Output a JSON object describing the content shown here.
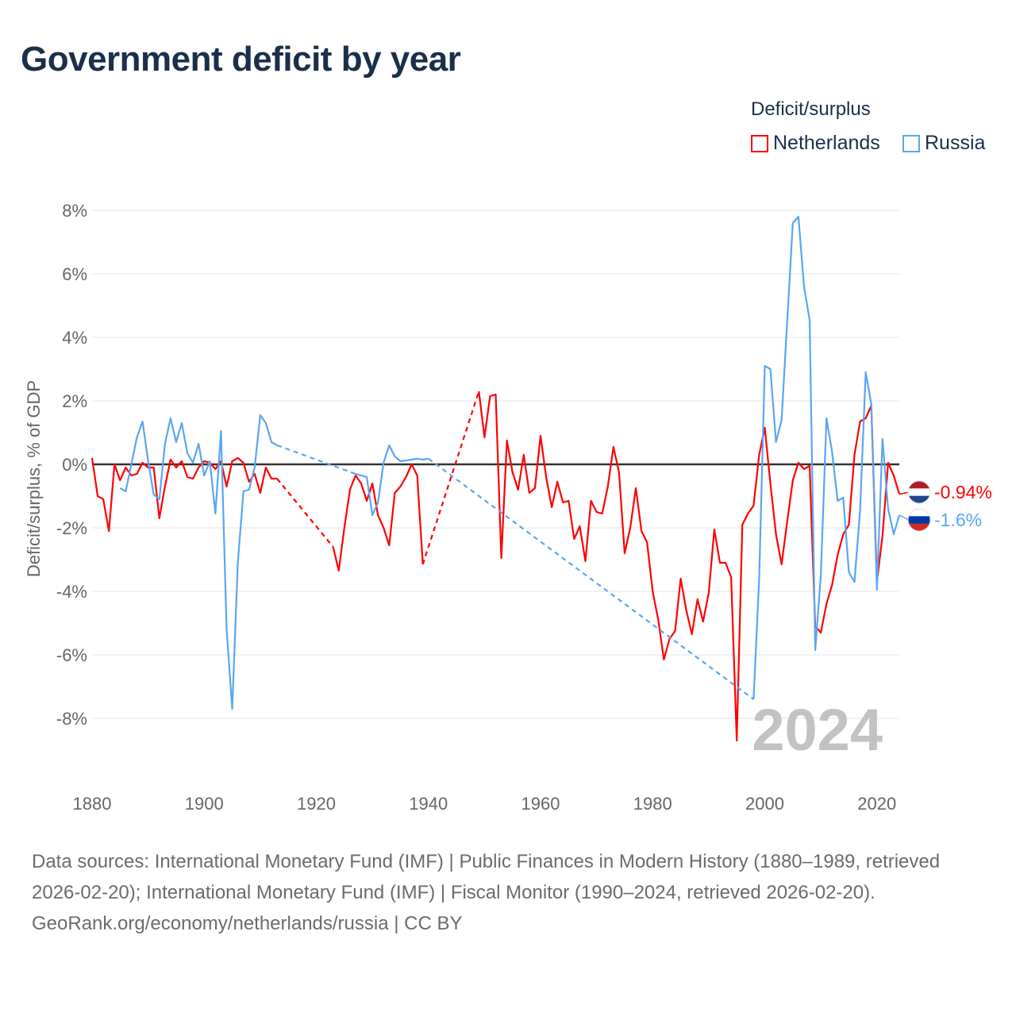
{
  "title": "Government deficit by year",
  "legend": {
    "title": "Deficit/surplus",
    "items": [
      {
        "name": "Netherlands",
        "color": "#ff0000"
      },
      {
        "name": "Russia",
        "color": "#5aa6f0"
      }
    ]
  },
  "chart_data": {
    "type": "line",
    "title": "Government deficit by year",
    "xlabel": "",
    "ylabel": "Deficit/surplus, % of GDP",
    "xlim": [
      1880,
      2024
    ],
    "ylim": [
      -10,
      8
    ],
    "x_ticks": [
      "1880",
      "1900",
      "1920",
      "1940",
      "1960",
      "1980",
      "2000",
      "2020"
    ],
    "y_ticks": [
      "8%",
      "6%",
      "4%",
      "2%",
      "0%",
      "-2%",
      "-4%",
      "-6%",
      "-8%"
    ],
    "grid": true,
    "legend_position": "top-right",
    "current_year_label": "2024",
    "series": [
      {
        "name": "Netherlands",
        "color": "#ff0000",
        "end_label": "-0.94%",
        "segments": [
          {
            "start": 1880,
            "values": [
              0.2,
              -1.0,
              -1.1,
              -2.1,
              0,
              -0.5,
              -0.1,
              -0.35,
              -0.3,
              0.05,
              -0.1,
              -0.1,
              -1.7,
              -0.7,
              0.15,
              -0.1,
              0.1,
              -0.4,
              -0.45,
              -0.1,
              0.1,
              0.05,
              -0.15,
              0.1,
              -0.7,
              0.1,
              0.2,
              0.05,
              -0.55,
              -0.3,
              -0.9,
              -0.1,
              -0.45,
              -0.45
            ]
          },
          {
            "start": 1923,
            "values": [
              -2.6,
              -3.35,
              -2.0,
              -0.8,
              -0.35,
              -0.6,
              -1.15,
              -0.6,
              -1.6,
              -2.0,
              -2.55,
              -0.9,
              -0.7,
              -0.4,
              0.0,
              -0.35,
              -3.15
            ]
          },
          {
            "start": 1949,
            "values": [
              2.3,
              0.85,
              2.15,
              2.2,
              -2.95,
              0.75,
              -0.25,
              -0.8,
              0.3,
              -0.9,
              -0.75,
              0.9,
              -0.4,
              -1.35,
              -0.55,
              -1.2,
              -1.15,
              -2.35,
              -1.95,
              -3.05,
              -1.15,
              -1.5,
              -1.55,
              -0.7,
              0.55,
              -0.25,
              -2.8,
              -2.0,
              -0.75,
              -2.1,
              -2.45,
              -4.0,
              -4.9,
              -6.15,
              -5.5,
              -5.25,
              -3.6,
              -4.6,
              -5.35,
              -4.25,
              -4.95,
              -4.05,
              -2.05,
              -3.1,
              -3.1,
              -3.55,
              -8.7,
              -1.9,
              -1.55,
              -1.3,
              0.3,
              1.15,
              -0.6,
              -2.2,
              -3.15,
              -1.8,
              -0.5,
              0.05,
              -0.15,
              -0.05,
              -5.1,
              -5.3,
              -4.4,
              -3.8,
              -2.85,
              -2.2,
              -1.9,
              0.3,
              1.35,
              1.45,
              1.85,
              -3.7,
              -2.25,
              0.05,
              -0.35,
              -0.94
            ]
          }
        ]
      },
      {
        "name": "Russia",
        "color": "#5aa6f0",
        "end_label": "-1.6%",
        "segments": [
          {
            "start": 1885,
            "values": [
              -0.75,
              -0.85,
              0,
              0.85,
              1.35,
              0.1,
              -0.95,
              -1.1,
              0.65,
              1.45,
              0.7,
              1.3,
              0.35,
              0.05,
              0.65,
              -0.35,
              0.1,
              -1.55,
              1.05,
              -5.2,
              -7.7,
              -3.1,
              -0.85,
              -0.8,
              -0.1,
              1.55,
              1.3,
              0.7,
              0.6
            ]
          },
          {
            "start": 1927,
            "values": [
              -0.3,
              -0.35,
              -0.4,
              -1.6,
              -1.2,
              0.05,
              0.6,
              0.25,
              0.1,
              0.12,
              0.15,
              0.18,
              0.15,
              0.18
            ]
          },
          {
            "start": 1998,
            "values": [
              -7.4,
              -3.6,
              3.1,
              3.0,
              0.7,
              1.4,
              4.5,
              7.6,
              7.8,
              5.6,
              4.55,
              -5.85,
              -3.5,
              1.45,
              0.4,
              -1.15,
              -1.05,
              -3.4,
              -3.7,
              -1.45,
              2.9,
              1.9,
              -3.95,
              0.8,
              -1.4,
              -2.2,
              -1.6
            ]
          }
        ]
      }
    ]
  },
  "footer": {
    "sources": "Data sources: International Monetary Fund (IMF) | Public Finances in Modern History (1880–1989, retrieved 2026-02-20); International Monetary Fund (IMF) | Fiscal Monitor (1990–2024, retrieved 2026-02-20).",
    "credit": "GeoRank.org/economy/netherlands/russia | CC BY"
  }
}
